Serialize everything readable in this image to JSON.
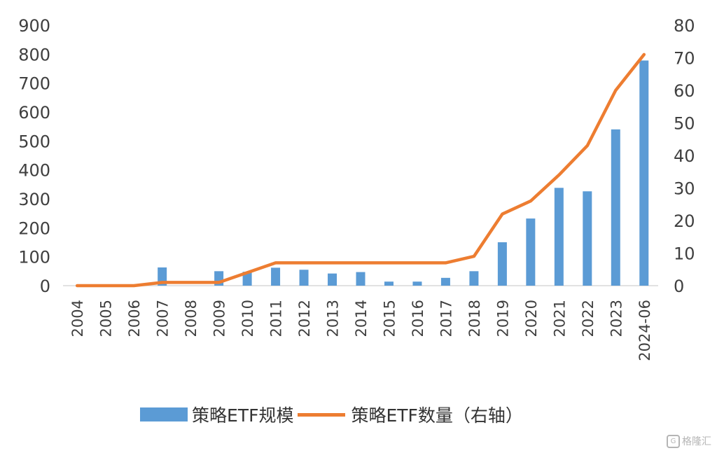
{
  "chart_data": {
    "type": "bar+line",
    "categories": [
      "2004",
      "2005",
      "2006",
      "2007",
      "2008",
      "2009",
      "2010",
      "2011",
      "2012",
      "2013",
      "2014",
      "2015",
      "2016",
      "2017",
      "2018",
      "2019",
      "2020",
      "2021",
      "2022",
      "2023",
      "2024-06"
    ],
    "series": [
      {
        "name": "策略ETF规模",
        "type": "bar",
        "axis": "left",
        "color": "#5b9bd5",
        "values": [
          0,
          0,
          0,
          63,
          0,
          50,
          48,
          62,
          55,
          42,
          47,
          14,
          14,
          27,
          50,
          150,
          232,
          338,
          326,
          540,
          778
        ]
      },
      {
        "name": "策略ETF数量（右轴）",
        "type": "line",
        "axis": "right",
        "color": "#ed7d31",
        "values": [
          0,
          0,
          0,
          1,
          1,
          1,
          4,
          7,
          7,
          7,
          7,
          7,
          7,
          7,
          9,
          22,
          26,
          34,
          43,
          60,
          71
        ]
      }
    ],
    "y_left": {
      "range": [
        0,
        900
      ],
      "ticks": [
        0,
        100,
        200,
        300,
        400,
        500,
        600,
        700,
        800,
        900
      ]
    },
    "y_right": {
      "range": [
        0,
        80
      ],
      "ticks": [
        0,
        10,
        20,
        30,
        40,
        50,
        60,
        70,
        80
      ]
    },
    "grid": false,
    "legend_position": "bottom"
  },
  "legend": {
    "bar_label": "策略ETF规模",
    "line_label": "策略ETF数量（右轴）"
  },
  "watermark": {
    "icon": "G",
    "text": "格隆汇"
  }
}
